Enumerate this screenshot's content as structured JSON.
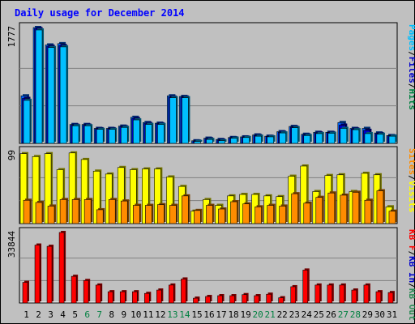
{
  "title": "Daily usage for December 2014",
  "colors": {
    "background": "#c0c0c0",
    "pages": "#00bfff",
    "hits": "#0066ff",
    "files": "#0000cc",
    "visits": "#ffff00",
    "sites": "#ff8c00",
    "kb_out": "#2e8b57",
    "kb_in": "#0000cc",
    "kb_f": "#ff0000",
    "weekday_label": "#000000",
    "weekend_label": "#008040",
    "title": "#0000ff"
  },
  "chart_data": [
    {
      "type": "bar",
      "name": "hits-pages-panel",
      "ymax_label": "1777",
      "ylim": [
        0,
        1777
      ],
      "legend": [
        {
          "text": "Pages",
          "color": "#00bfff"
        },
        {
          "text": "/",
          "color": "#000000"
        },
        {
          "text": "Files",
          "color": "#0000cc"
        },
        {
          "text": "/",
          "color": "#000000"
        },
        {
          "text": "Hits",
          "color": "#008040"
        }
      ],
      "categories": [
        "1",
        "2",
        "3",
        "4",
        "5",
        "6",
        "7",
        "8",
        "9",
        "10",
        "11",
        "12",
        "13",
        "14",
        "15",
        "16",
        "17",
        "18",
        "19",
        "20",
        "21",
        "22",
        "23",
        "24",
        "25",
        "26",
        "27",
        "28",
        "29",
        "30",
        "31"
      ],
      "series": [
        {
          "name": "Hits",
          "values": [
            730,
            1777,
            1510,
            1530,
            290,
            290,
            230,
            230,
            265,
            400,
            320,
            310,
            730,
            720,
            40,
            80,
            60,
            90,
            100,
            130,
            110,
            180,
            260,
            140,
            170,
            170,
            320,
            230,
            230,
            160,
            120
          ]
        },
        {
          "name": "Files",
          "values": [
            690,
            1760,
            1490,
            1500,
            280,
            280,
            225,
            225,
            255,
            380,
            305,
            300,
            710,
            710,
            35,
            70,
            50,
            85,
            95,
            120,
            105,
            170,
            250,
            130,
            160,
            165,
            280,
            220,
            200,
            150,
            115
          ]
        },
        {
          "name": "Pages",
          "values": [
            660,
            1740,
            1470,
            1480,
            270,
            270,
            215,
            215,
            245,
            360,
            290,
            290,
            700,
            700,
            30,
            60,
            40,
            80,
            90,
            110,
            100,
            160,
            240,
            120,
            150,
            155,
            230,
            210,
            150,
            140,
            110
          ]
        }
      ]
    },
    {
      "type": "bar",
      "name": "visits-sites-panel",
      "ymax_label": "99",
      "ylim": [
        0,
        99
      ],
      "legend": [
        {
          "text": "Sites",
          "color": "#ff8c00"
        },
        {
          "text": "/",
          "color": "#000000"
        },
        {
          "text": "Visits",
          "color": "#ffff00"
        }
      ],
      "categories": [
        "1",
        "2",
        "3",
        "4",
        "5",
        "6",
        "7",
        "8",
        "9",
        "10",
        "11",
        "12",
        "13",
        "14",
        "15",
        "16",
        "17",
        "18",
        "19",
        "20",
        "21",
        "22",
        "23",
        "24",
        "25",
        "26",
        "27",
        "28",
        "29",
        "30",
        "31"
      ],
      "series": [
        {
          "name": "Visits",
          "values": [
            96,
            92,
            96,
            74,
            97,
            88,
            72,
            68,
            77,
            74,
            75,
            75,
            64,
            51,
            17,
            33,
            25,
            38,
            40,
            40,
            38,
            37,
            65,
            79,
            44,
            66,
            67,
            44,
            69,
            67,
            23
          ]
        },
        {
          "name": "Sites",
          "values": [
            32,
            29,
            24,
            33,
            33,
            33,
            19,
            33,
            31,
            25,
            25,
            26,
            25,
            38,
            18,
            25,
            20,
            30,
            27,
            23,
            25,
            24,
            41,
            28,
            36,
            42,
            39,
            43,
            32,
            45,
            17
          ]
        }
      ]
    },
    {
      "type": "bar",
      "name": "kbytes-panel",
      "ymax_label": "33844",
      "ylim": [
        0,
        33844
      ],
      "legend": [
        {
          "text": "KB F",
          "color": "#ff0000"
        },
        {
          "text": "/",
          "color": "#000000"
        },
        {
          "text": "KB In",
          "color": "#0000cc"
        },
        {
          "text": "/",
          "color": "#000000"
        },
        {
          "text": "KB Out",
          "color": "#2e8b57"
        }
      ],
      "categories": [
        "1",
        "2",
        "3",
        "4",
        "5",
        "6",
        "7",
        "8",
        "9",
        "10",
        "11",
        "12",
        "13",
        "14",
        "15",
        "16",
        "17",
        "18",
        "19",
        "20",
        "21",
        "22",
        "23",
        "24",
        "25",
        "26",
        "27",
        "28",
        "29",
        "30",
        "31"
      ],
      "series": [
        {
          "name": "KB F",
          "values": [
            9900,
            27800,
            27200,
            33844,
            12800,
            10800,
            8600,
            5400,
            5400,
            5400,
            4600,
            6200,
            8600,
            11500,
            2300,
            3100,
            3500,
            3500,
            4000,
            3500,
            4200,
            2500,
            7800,
            15800,
            8600,
            8600,
            8600,
            6200,
            8600,
            5400,
            5000
          ]
        }
      ]
    }
  ],
  "x_labels": [
    {
      "text": "1",
      "weekend": false
    },
    {
      "text": "2",
      "weekend": false
    },
    {
      "text": "3",
      "weekend": false
    },
    {
      "text": "4",
      "weekend": false
    },
    {
      "text": "5",
      "weekend": false
    },
    {
      "text": "6",
      "weekend": true
    },
    {
      "text": "7",
      "weekend": true
    },
    {
      "text": "8",
      "weekend": false
    },
    {
      "text": "9",
      "weekend": false
    },
    {
      "text": "10",
      "weekend": false
    },
    {
      "text": "11",
      "weekend": false
    },
    {
      "text": "12",
      "weekend": false
    },
    {
      "text": "13",
      "weekend": true
    },
    {
      "text": "14",
      "weekend": true
    },
    {
      "text": "15",
      "weekend": false
    },
    {
      "text": "16",
      "weekend": false
    },
    {
      "text": "17",
      "weekend": false
    },
    {
      "text": "18",
      "weekend": false
    },
    {
      "text": "19",
      "weekend": false
    },
    {
      "text": "20",
      "weekend": true
    },
    {
      "text": "21",
      "weekend": true
    },
    {
      "text": "22",
      "weekend": false
    },
    {
      "text": "23",
      "weekend": false
    },
    {
      "text": "24",
      "weekend": false
    },
    {
      "text": "25",
      "weekend": false
    },
    {
      "text": "26",
      "weekend": false
    },
    {
      "text": "27",
      "weekend": true
    },
    {
      "text": "28",
      "weekend": true
    },
    {
      "text": "29",
      "weekend": false
    },
    {
      "text": "30",
      "weekend": false
    },
    {
      "text": "31",
      "weekend": false
    }
  ]
}
